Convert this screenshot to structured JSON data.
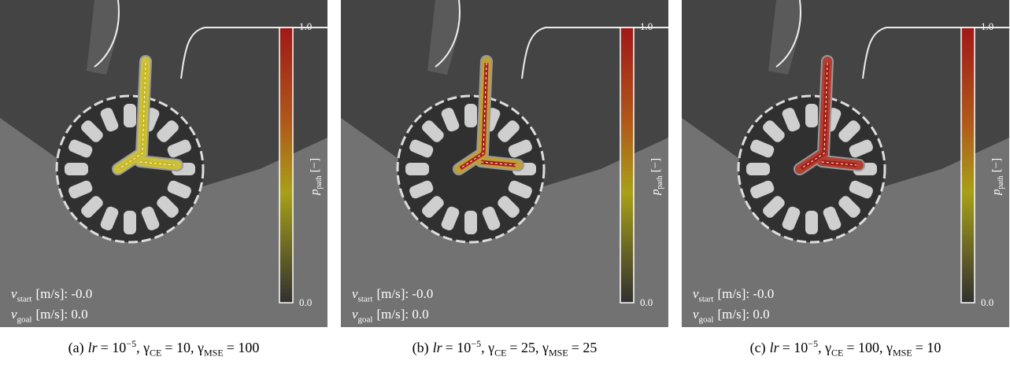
{
  "panels": [
    {
      "colorbar": {
        "max": "1.0",
        "min": "0.0",
        "symbol": "p",
        "sub": "path",
        "unit": "[−]"
      },
      "v_start": {
        "symbol": "v",
        "sub": "start",
        "text": "[m/s]: -0.0"
      },
      "v_goal": {
        "symbol": "v",
        "sub": "goal",
        "text": "[m/s]: 0.0"
      },
      "caption": [
        "(a)",
        "lr",
        "= 10",
        "−5",
        ", γ",
        "CE",
        "= 10, γ",
        "MSE",
        "= 100"
      ]
    },
    {
      "colorbar": {
        "max": "1.0",
        "min": "0.0",
        "symbol": "p",
        "sub": "path",
        "unit": "[−]"
      },
      "v_start": {
        "symbol": "v",
        "sub": "start",
        "text": "[m/s]: -0.0"
      },
      "v_goal": {
        "symbol": "v",
        "sub": "goal",
        "text": "[m/s]: 0.0"
      },
      "caption": [
        "(b)",
        "lr",
        "= 10",
        "−5",
        ", γ",
        "CE",
        "= 25, γ",
        "MSE",
        "= 25"
      ]
    },
    {
      "colorbar": {
        "max": "1.0",
        "min": "0.0",
        "symbol": "p",
        "sub": "path",
        "unit": "[−]"
      },
      "v_start": {
        "symbol": "v",
        "sub": "start",
        "text": "[m/s]: -0.0"
      },
      "v_goal": {
        "symbol": "v",
        "sub": "goal",
        "text": "[m/s]: 0.0"
      },
      "caption": [
        "(c)",
        "lr",
        "= 10",
        "−5",
        ", γ",
        "CE",
        "= 100, γ",
        "MSE",
        "= 10"
      ]
    }
  ]
}
